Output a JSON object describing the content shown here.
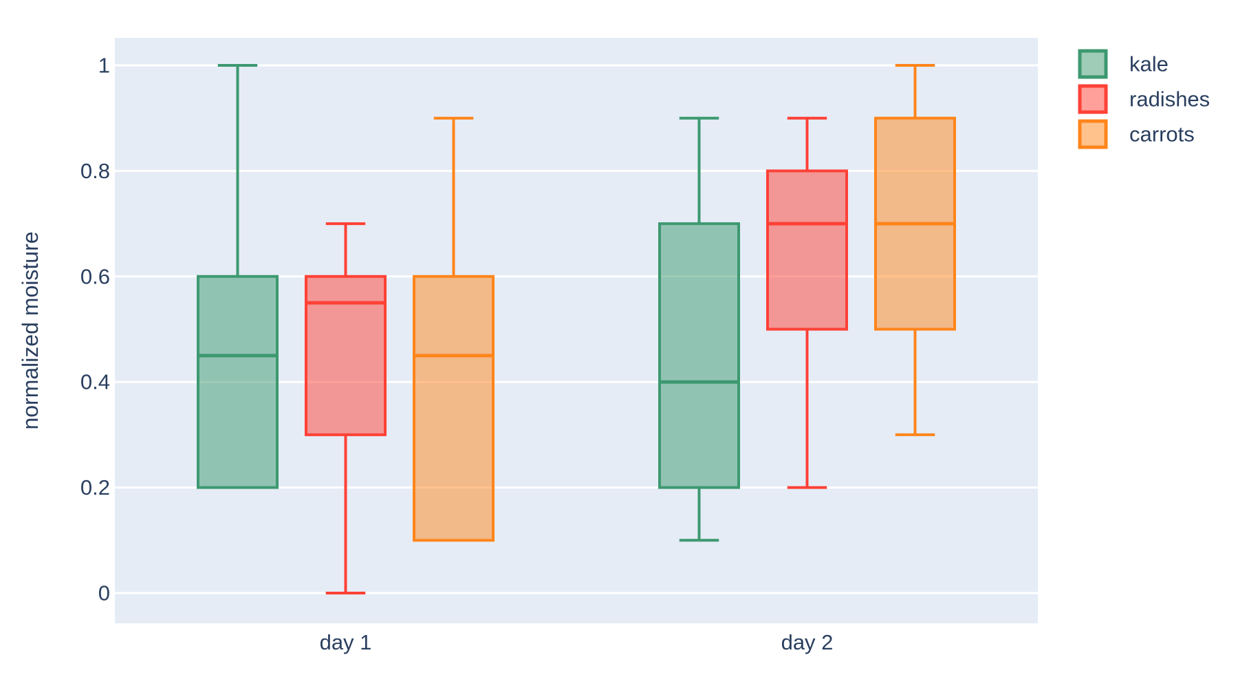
{
  "chart_data": {
    "type": "box",
    "boxmode": "group",
    "title": "",
    "xlabel": "",
    "ylabel": "normalized moisture",
    "categories": [
      "day 1",
      "day 2"
    ],
    "y_ticks": [
      0,
      0.2,
      0.4,
      0.6,
      0.8,
      1
    ],
    "y_tick_labels": [
      "0",
      "0.2",
      "0.4",
      "0.6",
      "0.8",
      "1"
    ],
    "ylim": [
      -0.056,
      1.052
    ],
    "grid": true,
    "legend": {
      "position": "top-right-outside",
      "entries": [
        "kale",
        "radishes",
        "carrots"
      ]
    },
    "series": [
      {
        "name": "kale",
        "color": "#3D9970",
        "boxes": [
          {
            "category": "day 1",
            "whisker_low": 0.2,
            "q1": 0.2,
            "median": 0.45,
            "q3": 0.6,
            "whisker_high": 1.0
          },
          {
            "category": "day 2",
            "whisker_low": 0.1,
            "q1": 0.2,
            "median": 0.4,
            "q3": 0.7,
            "whisker_high": 0.9
          }
        ]
      },
      {
        "name": "radishes",
        "color": "#FF4136",
        "boxes": [
          {
            "category": "day 1",
            "whisker_low": 0.0,
            "q1": 0.3,
            "median": 0.55,
            "q3": 0.6,
            "whisker_high": 0.7
          },
          {
            "category": "day 2",
            "whisker_low": 0.2,
            "q1": 0.5,
            "median": 0.7,
            "q3": 0.8,
            "whisker_high": 0.9
          }
        ]
      },
      {
        "name": "carrots",
        "color": "#FF851B",
        "boxes": [
          {
            "category": "day 1",
            "whisker_low": 0.1,
            "q1": 0.1,
            "median": 0.45,
            "q3": 0.6,
            "whisker_high": 0.9
          },
          {
            "category": "day 2",
            "whisker_low": 0.3,
            "q1": 0.5,
            "median": 0.7,
            "q3": 0.9,
            "whisker_high": 1.0
          }
        ]
      }
    ],
    "colors": {
      "plot_background": "#E5ECF6",
      "paper_background": "#FFFFFF",
      "gridline": "#FFFFFF",
      "text": "#2A3F5F"
    },
    "fill_alpha": 0.5
  }
}
